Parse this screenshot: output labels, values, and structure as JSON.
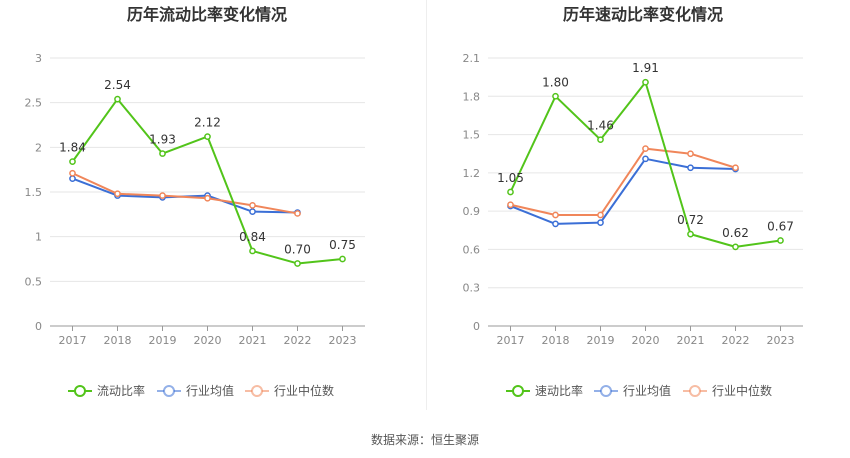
{
  "source": "数据来源：恒生聚源",
  "chart_data": [
    {
      "type": "line",
      "title": "历年流动比率变化情况",
      "categories": [
        "2017",
        "2018",
        "2019",
        "2020",
        "2021",
        "2022",
        "2023"
      ],
      "ylim": [
        0,
        3
      ],
      "yticks": [
        "0",
        "0.5",
        "1",
        "1.5",
        "2",
        "2.5",
        "3"
      ],
      "grid": true,
      "legend_position": "bottom",
      "series": [
        {
          "name": "流动比率",
          "color": "#52c41a",
          "values": [
            1.84,
            2.54,
            1.93,
            2.12,
            0.84,
            0.7,
            0.75
          ],
          "labels": [
            "1.84",
            "2.54",
            "1.93",
            "2.12",
            "0.84",
            "0.70",
            "0.75"
          ]
        },
        {
          "name": "行业均值",
          "color": "#3b6fd6",
          "values": [
            1.65,
            1.46,
            1.44,
            1.46,
            1.28,
            1.27,
            null
          ]
        },
        {
          "name": "行业中位数",
          "color": "#f0865a",
          "values": [
            1.71,
            1.48,
            1.46,
            1.43,
            1.35,
            1.26,
            null
          ]
        }
      ]
    },
    {
      "type": "line",
      "title": "历年速动比率变化情况",
      "categories": [
        "2017",
        "2018",
        "2019",
        "2020",
        "2021",
        "2022",
        "2023"
      ],
      "ylim": [
        0,
        2.1
      ],
      "yticks": [
        "0",
        "0.3",
        "0.6",
        "0.9",
        "1.2",
        "1.5",
        "1.8",
        "2.1"
      ],
      "grid": true,
      "legend_position": "bottom",
      "series": [
        {
          "name": "速动比率",
          "color": "#52c41a",
          "values": [
            1.05,
            1.8,
            1.46,
            1.91,
            0.72,
            0.62,
            0.67
          ],
          "labels": [
            "1.05",
            "1.80",
            "1.46",
            "1.91",
            "0.72",
            "0.62",
            "0.67"
          ]
        },
        {
          "name": "行业均值",
          "color": "#3b6fd6",
          "values": [
            0.94,
            0.8,
            0.81,
            1.31,
            1.24,
            1.23,
            null
          ]
        },
        {
          "name": "行业中位数",
          "color": "#f0865a",
          "values": [
            0.95,
            0.87,
            0.87,
            1.39,
            1.35,
            1.24,
            null
          ]
        }
      ]
    }
  ]
}
